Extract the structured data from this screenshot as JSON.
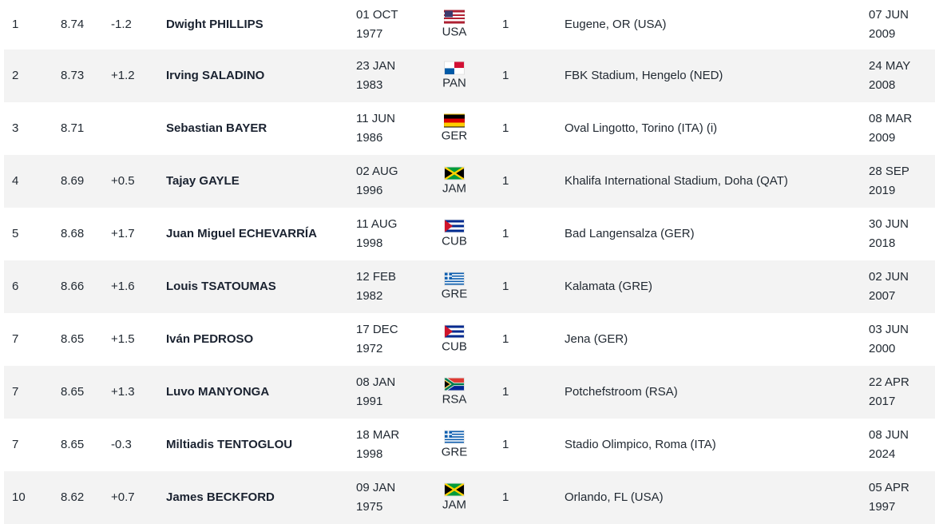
{
  "rows": [
    {
      "rank": "1",
      "mark": "8.74",
      "wind": "-1.2",
      "name": "Dwight PHILLIPS",
      "dob_day": "01 OCT",
      "dob_year": "1977",
      "nat": "USA",
      "flag": "usa-flag-icon",
      "pos": "1",
      "venue": "Eugene, OR (USA)",
      "date_day": "07 JUN",
      "date_year": "2009"
    },
    {
      "rank": "2",
      "mark": "8.73",
      "wind": "+1.2",
      "name": "Irving SALADINO",
      "dob_day": "23 JAN",
      "dob_year": "1983",
      "nat": "PAN",
      "flag": "pan-flag-icon",
      "pos": "1",
      "venue": "FBK Stadium, Hengelo (NED)",
      "date_day": "24 MAY",
      "date_year": "2008"
    },
    {
      "rank": "3",
      "mark": "8.71",
      "wind": "",
      "name": "Sebastian BAYER",
      "dob_day": "11 JUN",
      "dob_year": "1986",
      "nat": "GER",
      "flag": "ger-flag-icon",
      "pos": "1",
      "venue": "Oval Lingotto, Torino (ITA) (i)",
      "date_day": "08 MAR",
      "date_year": "2009"
    },
    {
      "rank": "4",
      "mark": "8.69",
      "wind": "+0.5",
      "name": "Tajay GAYLE",
      "dob_day": "02 AUG",
      "dob_year": "1996",
      "nat": "JAM",
      "flag": "jam-flag-icon",
      "pos": "1",
      "venue": "Khalifa International Stadium, Doha (QAT)",
      "date_day": "28 SEP",
      "date_year": "2019"
    },
    {
      "rank": "5",
      "mark": "8.68",
      "wind": "+1.7",
      "name": "Juan Miguel ECHEVARRÍA",
      "dob_day": "11 AUG",
      "dob_year": "1998",
      "nat": "CUB",
      "flag": "cub-flag-icon",
      "pos": "1",
      "venue": "Bad Langensalza (GER)",
      "date_day": "30 JUN",
      "date_year": "2018"
    },
    {
      "rank": "6",
      "mark": "8.66",
      "wind": "+1.6",
      "name": "Louis TSATOUMAS",
      "dob_day": "12 FEB",
      "dob_year": "1982",
      "nat": "GRE",
      "flag": "gre-flag-icon",
      "pos": "1",
      "venue": "Kalamata (GRE)",
      "date_day": "02 JUN",
      "date_year": "2007"
    },
    {
      "rank": "7",
      "mark": "8.65",
      "wind": "+1.5",
      "name": "Iván PEDROSO",
      "dob_day": "17 DEC",
      "dob_year": "1972",
      "nat": "CUB",
      "flag": "cub-flag-icon",
      "pos": "1",
      "venue": "Jena (GER)",
      "date_day": "03 JUN",
      "date_year": "2000"
    },
    {
      "rank": "7",
      "mark": "8.65",
      "wind": "+1.3",
      "name": "Luvo MANYONGA",
      "dob_day": "08 JAN",
      "dob_year": "1991",
      "nat": "RSA",
      "flag": "rsa-flag-icon",
      "pos": "1",
      "venue": "Potchefstroom (RSA)",
      "date_day": "22 APR",
      "date_year": "2017"
    },
    {
      "rank": "7",
      "mark": "8.65",
      "wind": "-0.3",
      "name": "Miltiadis TENTOGLOU",
      "dob_day": "18 MAR",
      "dob_year": "1998",
      "nat": "GRE",
      "flag": "gre-flag-icon",
      "pos": "1",
      "venue": "Stadio Olimpico, Roma (ITA)",
      "date_day": "08 JUN",
      "date_year": "2024"
    },
    {
      "rank": "10",
      "mark": "8.62",
      "wind": "+0.7",
      "name": "James BECKFORD",
      "dob_day": "09 JAN",
      "dob_year": "1975",
      "nat": "JAM",
      "flag": "jam-flag-icon",
      "pos": "1",
      "venue": "Orlando, FL (USA)",
      "date_day": "05 APR",
      "date_year": "1997"
    }
  ],
  "colors": {
    "row_alt": "#f3f3f3",
    "text": "#222a33",
    "name_text": "#1a2230"
  }
}
